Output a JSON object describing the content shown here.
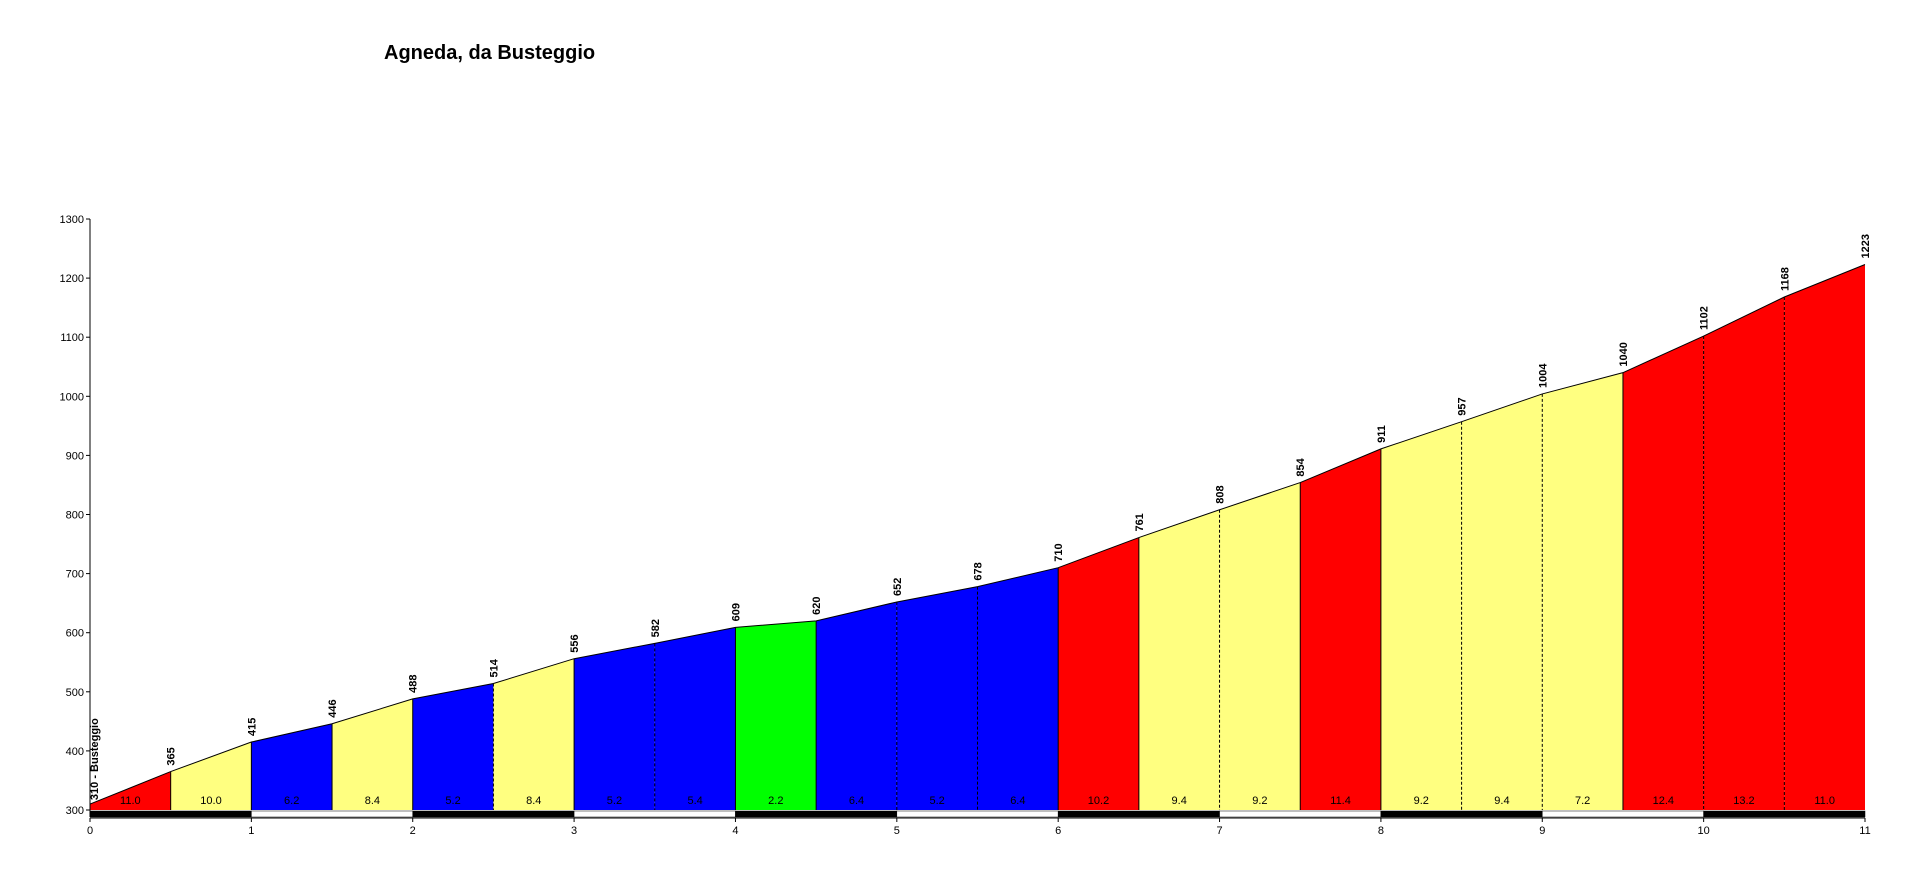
{
  "chart_data": {
    "type": "area",
    "title": "Agneda, da Busteggio",
    "xlabel": "",
    "ylabel": "",
    "xlim": [
      0,
      11
    ],
    "ylim": [
      300,
      1300
    ],
    "x_ticks": [
      "0",
      "1",
      "2",
      "3",
      "4",
      "5",
      "6",
      "7",
      "8",
      "9",
      "10",
      "11"
    ],
    "y_ticks": [
      "300",
      "400",
      "500",
      "600",
      "700",
      "800",
      "900",
      "1000",
      "1100",
      "1200",
      "1300"
    ],
    "start_label": "310 - Busteggio",
    "points": [
      {
        "km": 0.0,
        "elev": 310
      },
      {
        "km": 0.5,
        "elev": 365
      },
      {
        "km": 1.0,
        "elev": 415
      },
      {
        "km": 1.5,
        "elev": 446
      },
      {
        "km": 2.0,
        "elev": 488
      },
      {
        "km": 2.5,
        "elev": 514
      },
      {
        "km": 3.0,
        "elev": 556
      },
      {
        "km": 3.5,
        "elev": 582
      },
      {
        "km": 4.0,
        "elev": 609
      },
      {
        "km": 4.5,
        "elev": 620
      },
      {
        "km": 5.0,
        "elev": 652
      },
      {
        "km": 5.5,
        "elev": 678
      },
      {
        "km": 6.0,
        "elev": 710
      },
      {
        "km": 6.5,
        "elev": 761
      },
      {
        "km": 7.0,
        "elev": 808
      },
      {
        "km": 7.5,
        "elev": 854
      },
      {
        "km": 8.0,
        "elev": 911
      },
      {
        "km": 8.5,
        "elev": 957
      },
      {
        "km": 9.0,
        "elev": 1004
      },
      {
        "km": 9.5,
        "elev": 1040
      },
      {
        "km": 10.0,
        "elev": 1102
      },
      {
        "km": 10.5,
        "elev": 1168
      },
      {
        "km": 11.0,
        "elev": 1223
      }
    ],
    "elevation_labels": [
      "365",
      "415",
      "446",
      "488",
      "514",
      "556",
      "582",
      "609",
      "620",
      "652",
      "678",
      "710",
      "761",
      "808",
      "854",
      "911",
      "957",
      "1004",
      "1040",
      "1102",
      "1168",
      "1223"
    ],
    "segments": [
      {
        "grade": "11.0",
        "color": "#ff0000",
        "divider": "solid"
      },
      {
        "grade": "10.0",
        "color": "#ffff80",
        "divider": "solid"
      },
      {
        "grade": "6.2",
        "color": "#0000ff",
        "divider": "solid"
      },
      {
        "grade": "8.4",
        "color": "#ffff80",
        "divider": "solid"
      },
      {
        "grade": "5.2",
        "color": "#0000ff",
        "divider": "dashed"
      },
      {
        "grade": "8.4",
        "color": "#ffff80",
        "divider": "solid"
      },
      {
        "grade": "5.2",
        "color": "#0000ff",
        "divider": "dashed"
      },
      {
        "grade": "5.4",
        "color": "#0000ff",
        "divider": "solid"
      },
      {
        "grade": "2.2",
        "color": "#00ff00",
        "divider": "solid"
      },
      {
        "grade": "6.4",
        "color": "#0000ff",
        "divider": "dashed"
      },
      {
        "grade": "5.2",
        "color": "#0000ff",
        "divider": "dashed"
      },
      {
        "grade": "6.4",
        "color": "#0000ff",
        "divider": "solid"
      },
      {
        "grade": "10.2",
        "color": "#ff0000",
        "divider": "solid"
      },
      {
        "grade": "9.4",
        "color": "#ffff80",
        "divider": "dashed"
      },
      {
        "grade": "9.2",
        "color": "#ffff80",
        "divider": "solid"
      },
      {
        "grade": "11.4",
        "color": "#ff0000",
        "divider": "solid"
      },
      {
        "grade": "9.2",
        "color": "#ffff80",
        "divider": "dashed"
      },
      {
        "grade": "9.4",
        "color": "#ffff80",
        "divider": "dashed"
      },
      {
        "grade": "7.2",
        "color": "#ffff80",
        "divider": "solid"
      },
      {
        "grade": "12.4",
        "color": "#ff0000",
        "divider": "dashed"
      },
      {
        "grade": "13.2",
        "color": "#ff0000",
        "divider": "dashed"
      },
      {
        "grade": "11.0",
        "color": "#ff0000",
        "divider": "none"
      }
    ],
    "bar_colors": [
      "#000000",
      "#ffffff"
    ],
    "grid": false,
    "legend": "none"
  }
}
